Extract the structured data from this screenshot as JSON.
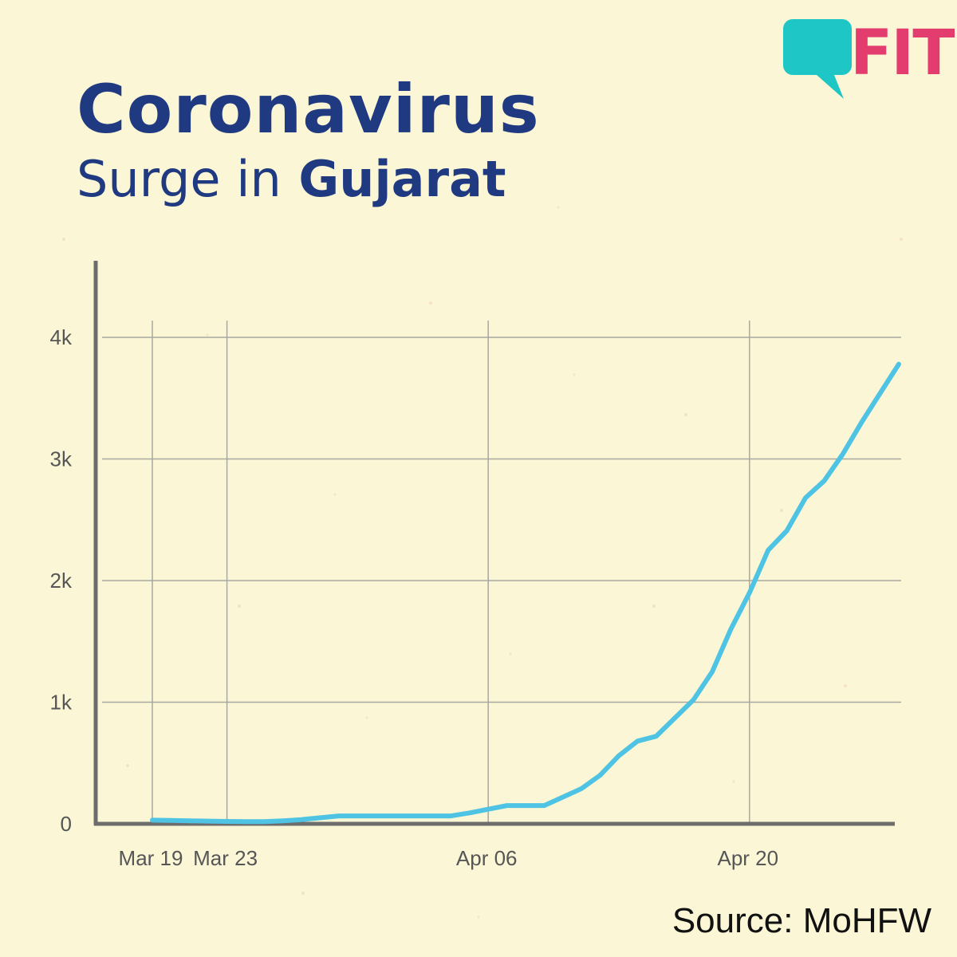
{
  "header": {
    "title": "Coronavirus",
    "subtitle_regular": "Surge in",
    "subtitle_bold": "Gujarat"
  },
  "logo": {
    "text": "FIT",
    "icon": "speech-bubble-icon",
    "bubble_color": "#1fc6c6",
    "text_color": "#e23d6e"
  },
  "source": "Source: MoHFW",
  "colors": {
    "background": "#fbf7d6",
    "line": "#4ec3e3",
    "title": "#1f3a80",
    "grid": "#a8a8a0",
    "axis": "#6d6d6d"
  },
  "chart_data": {
    "type": "line",
    "title": "Coronavirus Surge in Gujarat",
    "xlabel": "",
    "ylabel": "",
    "x_ticks": [
      "Mar 19",
      "Mar 23",
      "Apr 06",
      "Apr 20"
    ],
    "y_ticks": [
      "0",
      "1k",
      "2k",
      "3k",
      "4k"
    ],
    "ylim": [
      0,
      4000
    ],
    "grid": true,
    "series": [
      {
        "x": [
          "Mar 19",
          "Mar 20",
          "Mar 21",
          "Mar 22",
          "Mar 23",
          "Mar 24",
          "Mar 25",
          "Mar 26",
          "Mar 27",
          "Mar 28",
          "Mar 29",
          "Mar 30",
          "Mar 31",
          "Apr 01",
          "Apr 02",
          "Apr 03",
          "Apr 04",
          "Apr 05",
          "Apr 06",
          "Apr 07",
          "Apr 08",
          "Apr 09",
          "Apr 10",
          "Apr 11",
          "Apr 12",
          "Apr 13",
          "Apr 14",
          "Apr 15",
          "Apr 16",
          "Apr 17",
          "Apr 18",
          "Apr 19",
          "Apr 20",
          "Apr 21",
          "Apr 22",
          "Apr 23",
          "Apr 24",
          "Apr 25",
          "Apr 26",
          "Apr 27",
          "Apr 28"
        ],
        "values": [
          30,
          28,
          25,
          22,
          20,
          18,
          18,
          25,
          35,
          50,
          65,
          65,
          65,
          65,
          65,
          65,
          65,
          90,
          120,
          150,
          150,
          150,
          220,
          290,
          400,
          560,
          680,
          720,
          870,
          1020,
          1250,
          1600,
          1900,
          2250,
          2410,
          2680,
          2820,
          3040,
          3300,
          3540,
          3780
        ]
      }
    ]
  }
}
